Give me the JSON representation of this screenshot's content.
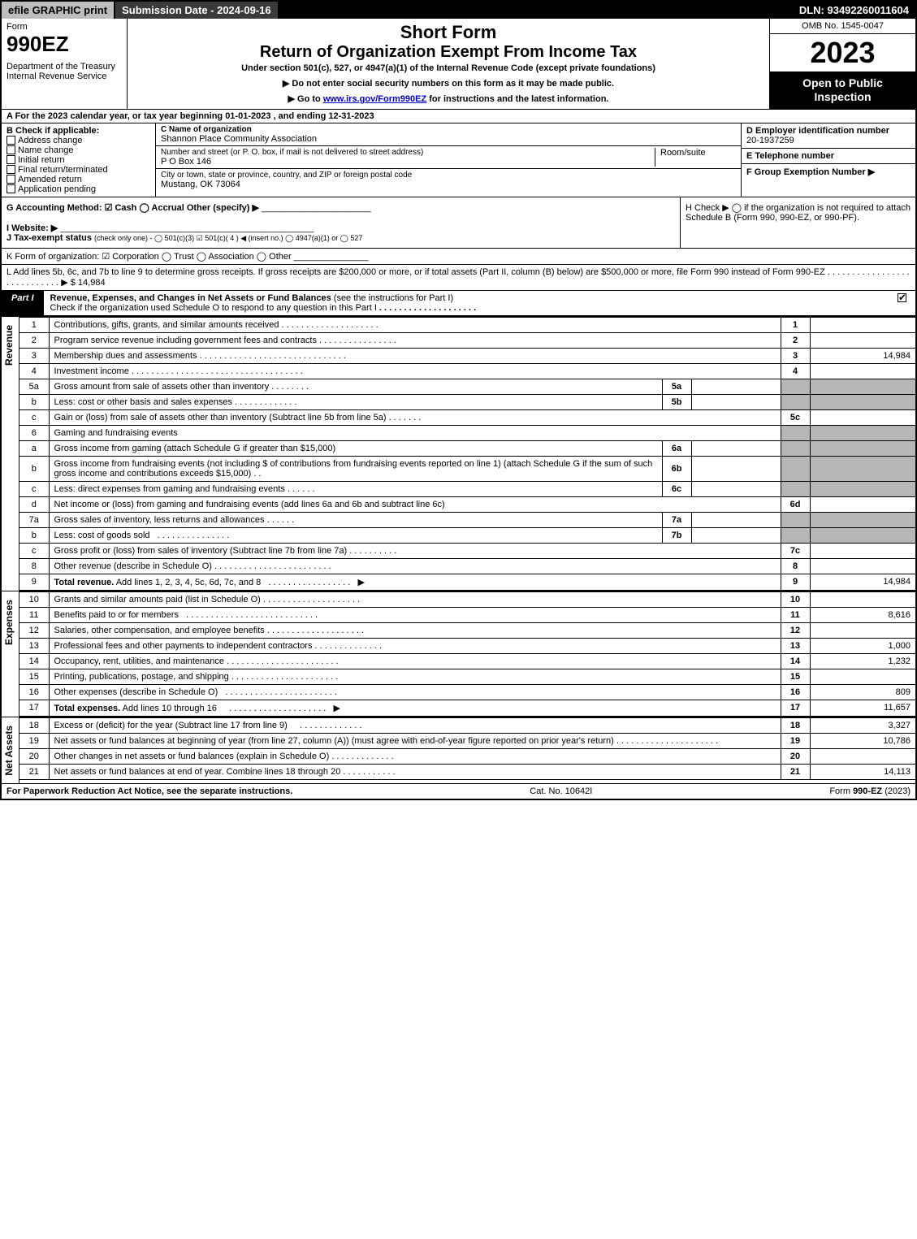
{
  "topbar": {
    "efile": "efile GRAPHIC print",
    "subdate": "Submission Date - 2024-09-16",
    "dln": "DLN: 93492260011604"
  },
  "header": {
    "form": "Form",
    "formno": "990EZ",
    "dept": "Department of the Treasury\nInternal Revenue Service",
    "shortform": "Short Form",
    "title": "Return of Organization Exempt From Income Tax",
    "sub": "Under section 501(c), 527, or 4947(a)(1) of the Internal Revenue Code (except private foundations)",
    "arrow1": "▶ Do not enter social security numbers on this form as it may be made public.",
    "arrow2_pre": "▶ Go to ",
    "arrow2_link": "www.irs.gov/Form990EZ",
    "arrow2_post": " for instructions and the latest information.",
    "omb": "OMB No. 1545-0047",
    "year": "2023",
    "open": "Open to Public Inspection"
  },
  "A": "A  For the 2023 calendar year, or tax year beginning 01-01-2023 , and ending 12-31-2023",
  "B": {
    "label": "B  Check if applicable:",
    "items": [
      "Address change",
      "Name change",
      "Initial return",
      "Final return/terminated",
      "Amended return",
      "Application pending"
    ]
  },
  "C": {
    "name_label": "C Name of organization",
    "name": "Shannon Place Community Association",
    "street_label": "Number and street (or P. O. box, if mail is not delivered to street address)",
    "street": "P O Box 146",
    "room_label": "Room/suite",
    "city_label": "City or town, state or province, country, and ZIP or foreign postal code",
    "city": "Mustang, OK  73064"
  },
  "D": {
    "label": "D Employer identification number",
    "val": "20-1937259"
  },
  "E": {
    "label": "E Telephone number",
    "val": ""
  },
  "F": {
    "label": "F Group Exemption Number  ▶",
    "val": ""
  },
  "G": "G Accounting Method:   ☑ Cash  ◯ Accrual   Other (specify) ▶",
  "H": "H  Check ▶  ◯  if the organization is not required to attach Schedule B (Form 990, 990-EZ, or 990-PF).",
  "I": "I Website: ▶",
  "J_pre": "J Tax-exempt status ",
  "J_sub": "(check only one) - ◯ 501(c)(3) ☑ 501(c)( 4 ) ◀ (insert no.) ◯ 4947(a)(1) or ◯ 527",
  "K": "K Form of organization:  ☑ Corporation  ◯ Trust  ◯ Association  ◯ Other",
  "L": "L Add lines 5b, 6c, and 7b to line 9 to determine gross receipts. If gross receipts are $200,000 or more, or if total assets (Part II, column (B) below) are $500,000 or more, file Form 990 instead of Form 990-EZ  .  .  .  .  .  .  .  .  .  .  .  .  .  .  .  .  .  .  .  .  .  .  .  .  .  .  .  .  ▶ $ 14,984",
  "part1": {
    "tag": "Part I",
    "title": "Revenue, Expenses, and Changes in Net Assets or Fund Balances ",
    "note": "(see the instructions for Part I)",
    "check": "Check if the organization used Schedule O to respond to any question in this Part I"
  },
  "sidelabels": {
    "rev": "Revenue",
    "exp": "Expenses",
    "net": "Net Assets"
  },
  "lines": {
    "1": {
      "d": "Contributions, gifts, grants, and similar amounts received",
      "v": ""
    },
    "2": {
      "d": "Program service revenue including government fees and contracts",
      "v": ""
    },
    "3": {
      "d": "Membership dues and assessments",
      "v": "14,984"
    },
    "4": {
      "d": "Investment income",
      "v": ""
    },
    "5a": {
      "d": "Gross amount from sale of assets other than inventory"
    },
    "5b": {
      "d": "Less: cost or other basis and sales expenses"
    },
    "5c": {
      "d": "Gain or (loss) from sale of assets other than inventory (Subtract line 5b from line 5a)",
      "v": ""
    },
    "6": {
      "d": "Gaming and fundraising events"
    },
    "6a": {
      "d": "Gross income from gaming (attach Schedule G if greater than $15,000)"
    },
    "6b": {
      "d": "Gross income from fundraising events (not including $                          of contributions from fundraising events reported on line 1) (attach Schedule G if the sum of such gross income and contributions exceeds $15,000)"
    },
    "6c": {
      "d": "Less: direct expenses from gaming and fundraising events"
    },
    "6d": {
      "d": "Net income or (loss) from gaming and fundraising events (add lines 6a and 6b and subtract line 6c)",
      "v": ""
    },
    "7a": {
      "d": "Gross sales of inventory, less returns and allowances"
    },
    "7b": {
      "d": "Less: cost of goods sold"
    },
    "7c": {
      "d": "Gross profit or (loss) from sales of inventory (Subtract line 7b from line 7a)",
      "v": ""
    },
    "8": {
      "d": "Other revenue (describe in Schedule O)",
      "v": ""
    },
    "9": {
      "d": "Total revenue. Add lines 1, 2, 3, 4, 5c, 6d, 7c, and 8",
      "v": "14,984"
    },
    "10": {
      "d": "Grants and similar amounts paid (list in Schedule O)",
      "v": ""
    },
    "11": {
      "d": "Benefits paid to or for members",
      "v": "8,616"
    },
    "12": {
      "d": "Salaries, other compensation, and employee benefits",
      "v": ""
    },
    "13": {
      "d": "Professional fees and other payments to independent contractors",
      "v": "1,000"
    },
    "14": {
      "d": "Occupancy, rent, utilities, and maintenance",
      "v": "1,232"
    },
    "15": {
      "d": "Printing, publications, postage, and shipping",
      "v": ""
    },
    "16": {
      "d": "Other expenses (describe in Schedule O)",
      "v": "809"
    },
    "17": {
      "d": "Total expenses. Add lines 10 through 16",
      "v": "11,657"
    },
    "18": {
      "d": "Excess or (deficit) for the year (Subtract line 17 from line 9)",
      "v": "3,327"
    },
    "19": {
      "d": "Net assets or fund balances at beginning of year (from line 27, column (A)) (must agree with end-of-year figure reported on prior year's return)",
      "v": "10,786"
    },
    "20": {
      "d": "Other changes in net assets or fund balances (explain in Schedule O)",
      "v": ""
    },
    "21": {
      "d": "Net assets or fund balances at end of year. Combine lines 18 through 20",
      "v": "14,113"
    }
  },
  "footer": {
    "l": "For Paperwork Reduction Act Notice, see the separate instructions.",
    "m": "Cat. No. 10642I",
    "r_pre": "Form ",
    "r_b": "990-EZ",
    "r_post": " (2023)"
  },
  "colors": {
    "black": "#000000",
    "white": "#ffffff",
    "link": "#0000cc",
    "shade": "#b6b6b6",
    "grey_btn": "#bdbdbd",
    "dark_btn": "#3a3a3a"
  }
}
